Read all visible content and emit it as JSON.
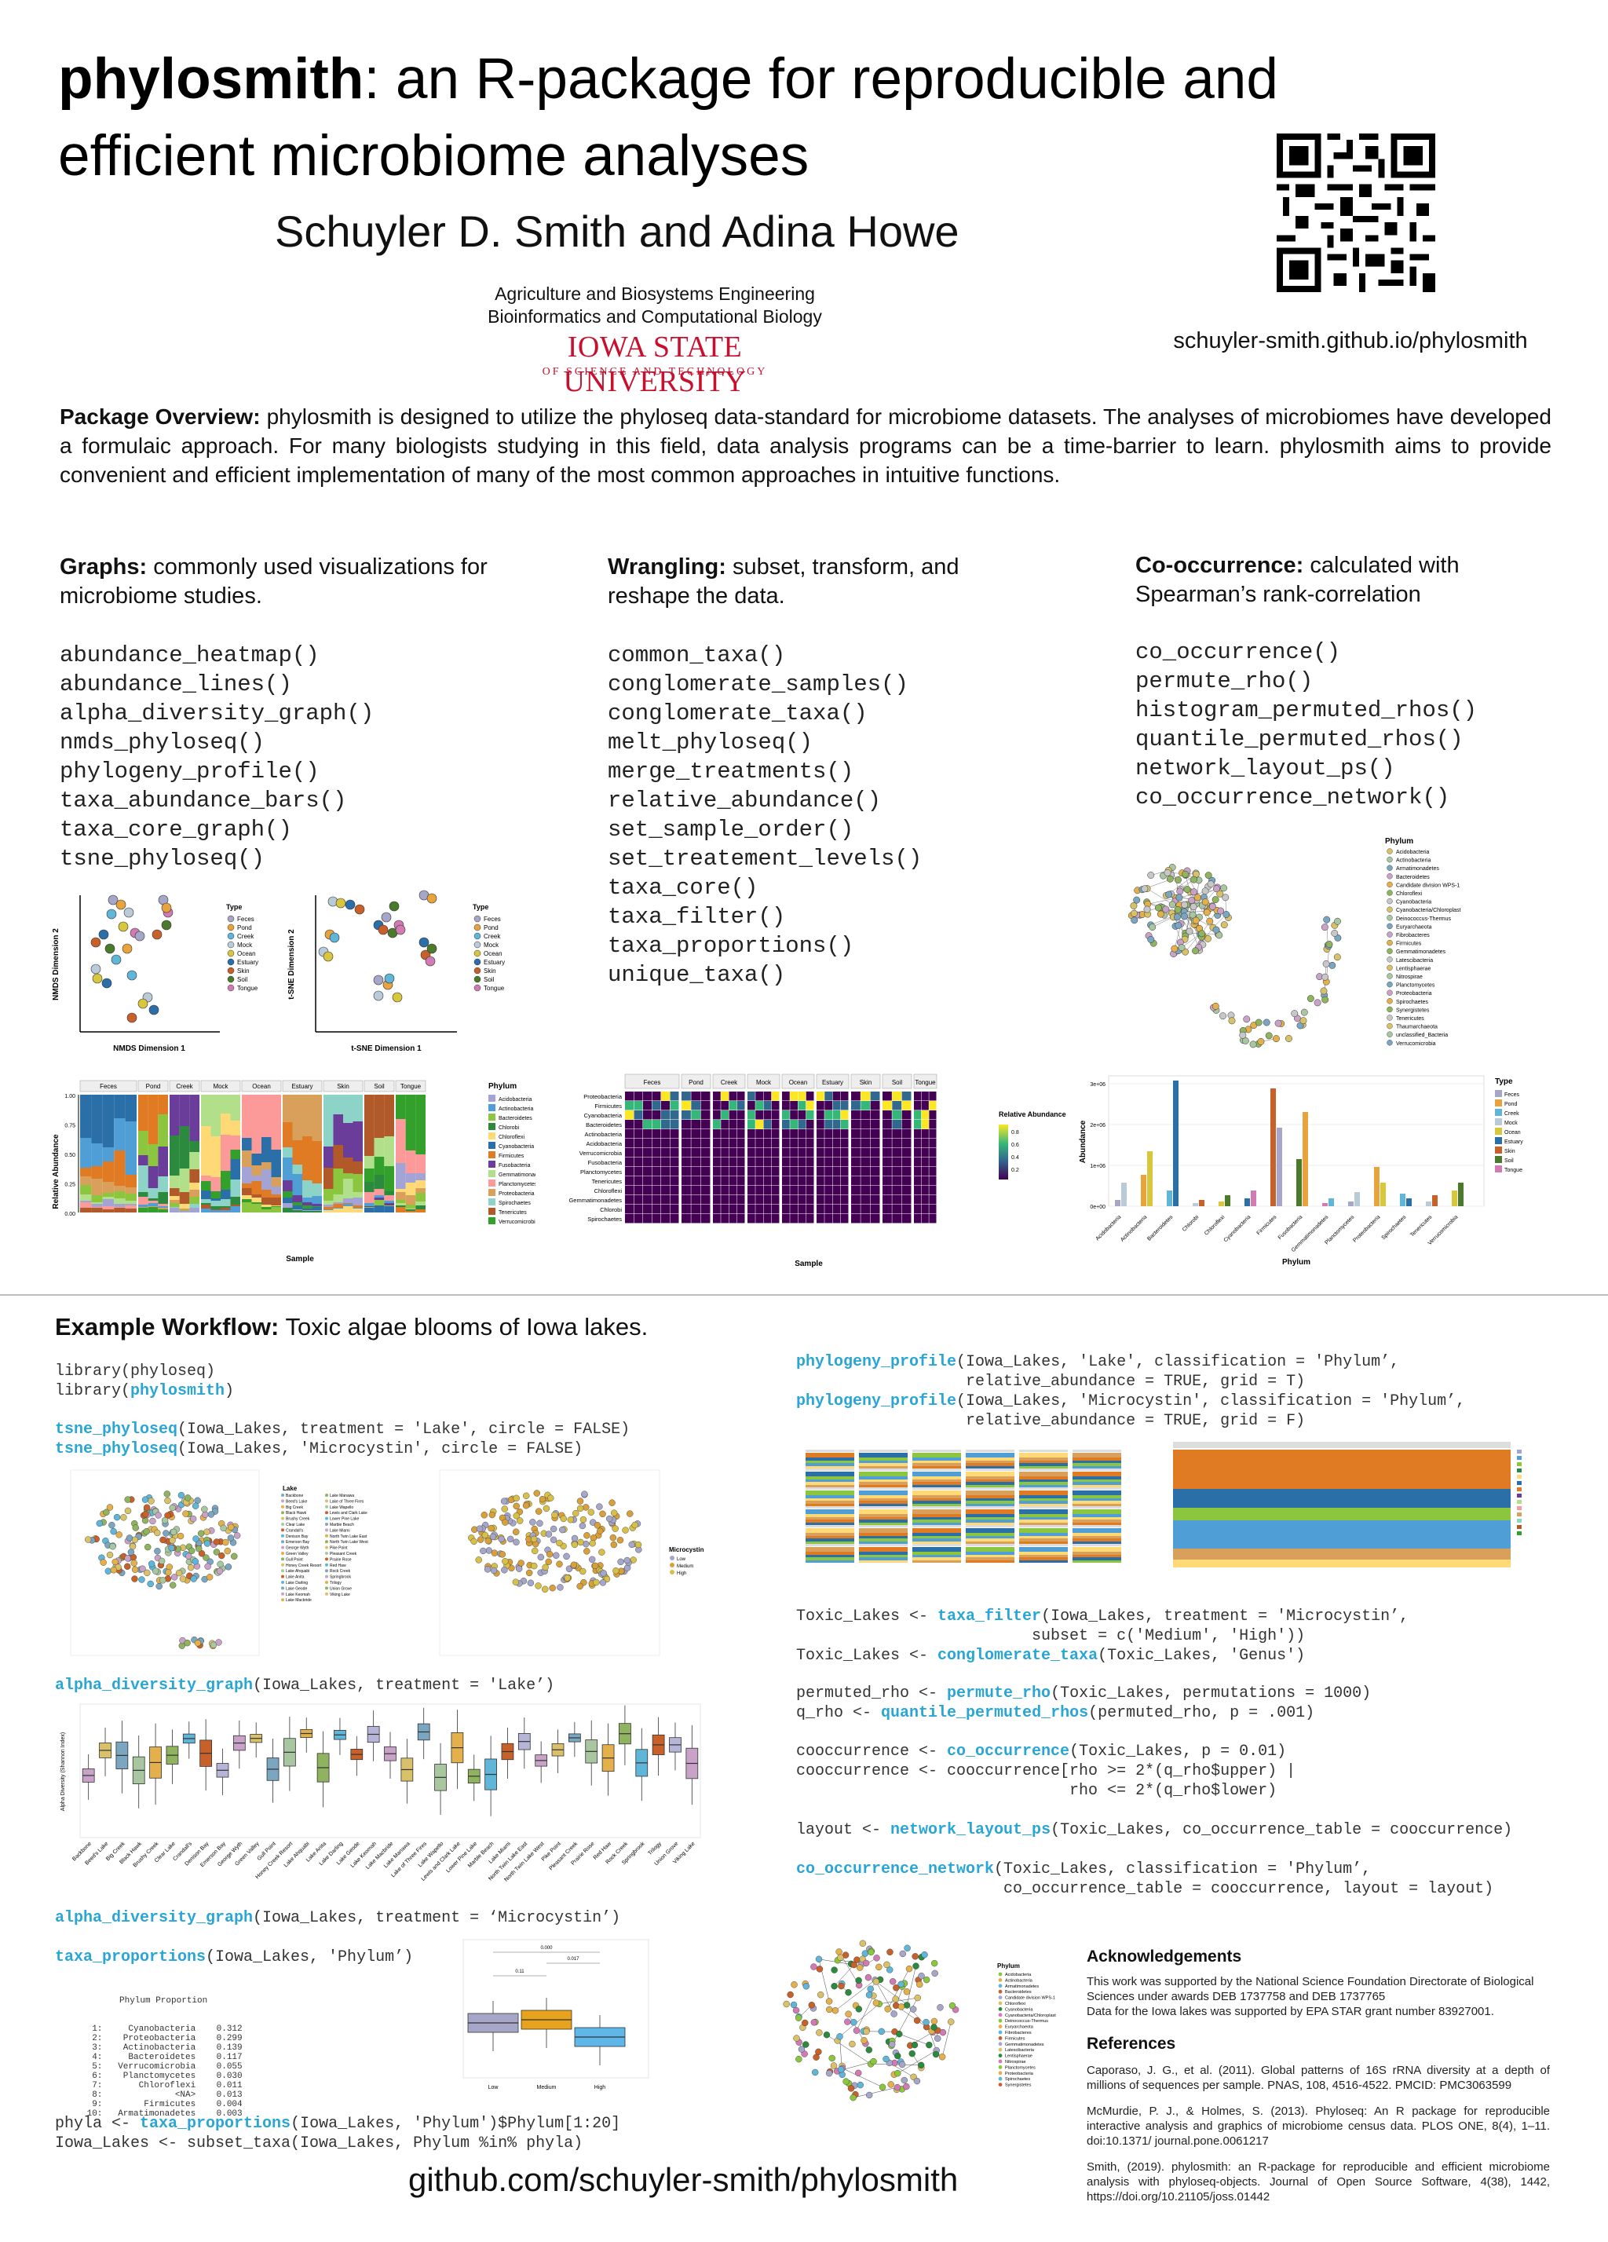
{
  "header": {
    "title_bold": "phylosmith",
    "title_rest": ": an R-package for reproducible and efficient microbiome analyses",
    "authors": "Schuyler D. Smith and Adina Howe",
    "affiliation_1": "Agriculture and Biosystems Engineering",
    "affiliation_2": "Bioinformatics and Computational Biology",
    "university_name": "Iowa State University",
    "university_sub": "OF SCIENCE AND TECHNOLOGY",
    "website": "schuyler-smith.github.io/phylosmith"
  },
  "overview": {
    "label": "Package Overview:",
    "text": "phylosmith is designed to utilize the phyloseq data-standard for microbiome datasets. The analyses of microbiomes have developed a formulaic approach. For many biologists studying in this field, data analysis programs can be a time-barrier to learn. phylosmith aims to provide convenient and efficient implementation of many of the most common approaches in intuitive functions."
  },
  "columns": {
    "graphs": {
      "label": "Graphs:",
      "desc": "commonly used visualizations for microbiome studies.",
      "functions": [
        "abundance_heatmap()",
        "abundance_lines()",
        "alpha_diversity_graph()",
        "nmds_phyloseq()",
        "phylogeny_profile()",
        "taxa_abundance_bars()",
        "taxa_core_graph()",
        "tsne_phyloseq()"
      ]
    },
    "wrangling": {
      "label": "Wrangling:",
      "desc": "subset, transform, and reshape the data.",
      "functions": [
        "common_taxa()",
        "conglomerate_samples()",
        "conglomerate_taxa()",
        "melt_phyloseq()",
        "merge_treatments()",
        "relative_abundance()",
        "set_sample_order()",
        "set_treatement_levels()",
        "taxa_core()",
        "taxa_filter()",
        "taxa_proportions()",
        "unique_taxa()"
      ]
    },
    "cooccurrence": {
      "label": "Co-occurrence:",
      "desc": "calculated with Spearman’s rank-correlation",
      "functions": [
        "co_occurrence()",
        "permute_rho()",
        "histogram_permuted_rhos()",
        "quantile_permuted_rhos()",
        "network_layout_ps()",
        "co_occurrence_network()"
      ]
    }
  },
  "figures": {
    "nmds_xlabel": "NMDS Dimension 1",
    "nmds_ylabel": "NMDS Dimension 2",
    "tsne_xlabel": "t-SNE Dimension 1",
    "tsne_ylabel": "t-SNE Dimension 2",
    "type_legend_title": "Type",
    "types": [
      "Feces",
      "Pond",
      "Creek",
      "Mock",
      "Ocean",
      "Estuary",
      "Skin",
      "Soil",
      "Tongue"
    ],
    "type_colors": [
      "#a6a6c8",
      "#e8a33c",
      "#5fb6d8",
      "#b9cbd8",
      "#d8c63c",
      "#2b6fa8",
      "#c8602a",
      "#4a7a2a",
      "#d27ab3"
    ],
    "bars_ylabel": "Relative Abundance",
    "bars_xlabel": "Sample",
    "phylum_legend_title": "Phylum",
    "phyla": [
      "Acidobacteria",
      "Actinobacteria",
      "Bacteroidetes",
      "Chlorobi",
      "Chloroflexi",
      "Cyanobacteria",
      "Firmicutes",
      "Fusobacteria",
      "Gemmatimonadetes",
      "Planctomycetes",
      "Proteobacteria",
      "Spirochaetes",
      "Tenericutes",
      "Verrucomicrobia"
    ],
    "phylum_colors": [
      "#a3a3d6",
      "#4f9ed6",
      "#8cc63f",
      "#2b8a3e",
      "#fed976",
      "#2b6fa8",
      "#e07b24",
      "#6a3d9a",
      "#b2df8a",
      "#fb9a99",
      "#d9a05b",
      "#8dd3c7",
      "#b15928",
      "#33a02c"
    ],
    "heatmap_xlabel": "Sample",
    "heatmap_legend_title": "Relative Abundance",
    "heatmap_legend_ticks": [
      "0.8",
      "0.6",
      "0.4",
      "0.2"
    ],
    "heatmap_phyla": [
      "Proteobacteria",
      "Firmicutes",
      "Cyanobacteria",
      "Bacteroidetes",
      "Actinobacteria",
      "Acidobacteria",
      "Verrucomicrobia",
      "Fusobacteria",
      "Planctomycetes",
      "Tenericutes",
      "Chloroflexi",
      "Gemmatimonadetes",
      "Chlorobi",
      "Spirochaetes"
    ],
    "abund_ylabel": "Abundance",
    "abund_xlabel": "Phylum",
    "abund_yticks": [
      "3e+06",
      "2e+06",
      "1e+06",
      "0e+00"
    ],
    "network_legend_title": "Phylum",
    "network_phyla": [
      "Acidobacteria",
      "Actinobacteria",
      "Armatimonadetes",
      "Bacteroidetes",
      "Candidate division WPS-1",
      "Chloroflexi",
      "Cyanobacteria",
      "Cyanobacteria/Chloroplast",
      "Deinococcus-Thermus",
      "Euryarchaeota",
      "Fibrobacteres",
      "Firmicutes",
      "Gemmatimonadetes",
      "Latescibacteria",
      "Lentisphaerae",
      "Nitrospirae",
      "Planctomycetes",
      "Proteobacteria",
      "Spirochaetes",
      "Synergistetes",
      "Tenericutes",
      "Thaumarchaeota",
      "unclassified_Bacteria",
      "Verrucomicrobia"
    ]
  },
  "workflow": {
    "label": "Example Workflow:",
    "desc": "Toxic algae blooms of Iowa lakes.",
    "code_lib_1": "library(phyloseq)",
    "code_lib_2_pre": "library(",
    "code_lib_2_fn": "phylosmith",
    "code_lib_2_post": ")",
    "tsne_fn": "tsne_phyloseq",
    "tsne_args_1": "(Iowa_Lakes, treatment = 'Lake', circle = FALSE)",
    "tsne_args_2": "(Iowa_Lakes, 'Microcystin', circle = FALSE)",
    "alpha_fn": "alpha_diversity_graph",
    "alpha_args_1": "(Iowa_Lakes, treatment = 'Lake’)",
    "alpha_args_2": "(Iowa_Lakes, treatment = ‘Microcystin’)",
    "props_fn": "taxa_proportions",
    "props_args": "(Iowa_Lakes, 'Phylum’)",
    "phyla_pre": "phyla <- ",
    "phyla_args": "(Iowa_Lakes, 'Phylum')$Phylum[1:20]",
    "subset_line": "Iowa_Lakes <- subset_taxa(Iowa_Lakes, Phylum %in% phyla)",
    "profile_fn": "phylogeny_profile",
    "profile_args_1a": "(Iowa_Lakes, 'Lake', classification = 'Phylum’,",
    "profile_args_1b": "                  relative_abundance = TRUE, grid = T)",
    "profile_args_2a": "(Iowa_Lakes, 'Microcystin', classification = 'Phylum’,",
    "profile_args_2b": "                  relative_abundance = TRUE, grid = F)",
    "filter_pre": "Toxic_Lakes <- ",
    "filter_fn": "taxa_filter",
    "filter_args_a": "(Iowa_Lakes, treatment = 'Microcystin’,",
    "filter_args_b": "                         subset = c('Medium', 'High'))",
    "cong_pre": "Toxic_Lakes <- ",
    "cong_fn": "conglomerate_taxa",
    "cong_args": "(Toxic_Lakes, 'Genus')",
    "permute_pre": "permuted_rho <- ",
    "permute_fn": "permute_rho",
    "permute_args": "(Toxic_Lakes, permutations = 1000)",
    "quant_pre": "q_rho <- ",
    "quant_fn": "quantile_permuted_rhos",
    "quant_args": "(permuted_rho, p = .001)",
    "cooc_pre": "cooccurrence <- ",
    "cooc_fn": "co_occurrence",
    "cooc_args": "(Toxic_Lakes, p = 0.01)",
    "cooc_line2": "cooccurrence <- cooccurrence[rho >= 2*(q_rho$upper) |",
    "cooc_line3": "                             rho <= 2*(q_rho$lower)",
    "layout_pre": "layout <- ",
    "layout_fn": "network_layout_ps",
    "layout_args": "(Toxic_Lakes, co_occurrence_table = cooccurrence)",
    "net_fn": "co_occurrence_network",
    "net_args_a": "(Toxic_Lakes, classification = 'Phylum’,",
    "net_args_b": "                      co_occurrence_table = cooccurrence, layout = layout)",
    "lake_legend_title": "Lake",
    "microcystin_legend_title": "Microcystin",
    "microcystin_levels": [
      "Low",
      "Medium",
      "High"
    ],
    "alpha_ylabel": "Alpha Diversity (Shannon Index)",
    "lakes": [
      "Backbone",
      "Beed's Lake",
      "Big Creek",
      "Black Hawk",
      "Brushy Creek",
      "Clear Lake",
      "Crandall's",
      "Denison Bay",
      "Emerson Bay",
      "George Wyth",
      "Green Valley",
      "Gull Point",
      "Honey Creek Resort",
      "Lake Ahquabi",
      "Lake Anita",
      "Lake Darling",
      "Lake Geode",
      "Lake Keomah",
      "Lake Macbride",
      "Lake Manawa",
      "Lake of Three Fires",
      "Lake Wapello",
      "Lewis and Clark Lake",
      "Lower Pine Lake",
      "Marble Beach",
      "Lake Miami",
      "North Twin Lake East",
      "North Twin Lake West",
      "Pike Point",
      "Pleasant Creek",
      "Prairie Rose",
      "Red Haw",
      "Rock Creek",
      "Springbrook",
      "Trilogy",
      "Union Grove",
      "Viking Lake"
    ],
    "props_header": "Phylum Proportion",
    "props_rows": [
      {
        "n": "1:",
        "phylum": "Cyanobacteria",
        "p": "0.312"
      },
      {
        "n": "2:",
        "phylum": "Proteobacteria",
        "p": "0.299"
      },
      {
        "n": "3:",
        "phylum": "Actinobacteria",
        "p": "0.139"
      },
      {
        "n": "4:",
        "phylum": "Bacteroidetes",
        "p": "0.117"
      },
      {
        "n": "5:",
        "phylum": "Verrucomicrobia",
        "p": "0.055"
      },
      {
        "n": "6:",
        "phylum": "Planctomycetes",
        "p": "0.030"
      },
      {
        "n": "7:",
        "phylum": "Chloroflexi",
        "p": "0.011"
      },
      {
        "n": "8:",
        "phylum": "<NA>",
        "p": "0.013"
      },
      {
        "n": "9:",
        "phylum": "Firmicutes",
        "p": "0.004"
      },
      {
        "n": "10:",
        "phylum": "Armatimonadetes",
        "p": "0.003"
      }
    ],
    "box_values": [
      "0.000",
      "0.11",
      "0.017"
    ],
    "box_categories": [
      "Low",
      "Medium",
      "High"
    ],
    "box_colors": [
      "#a6a6c8",
      "#e8a31c",
      "#5fb6e8"
    ]
  },
  "acknowledgements": {
    "title": "Acknowledgements",
    "text_1": "This work was supported by the National Science Foundation Directorate of Biological Sciences under awards DEB 1737758 and DEB 1737765",
    "text_2": "Data for the Iowa lakes was supported by EPA STAR grant number 83927001."
  },
  "references": {
    "title": "References",
    "items": [
      "Caporaso, J. G., et al. (2011). Global patterns of 16S rRNA diversity at a depth of millions of sequences per sample. PNAS, 108, 4516-4522. PMCID: PMC3063599",
      "McMurdie, P. J., & Holmes, S. (2013). Phyloseq: An R package for reproducible interactive analysis and graphics of microbiome census data. PLOS ONE, 8(4), 1–11. doi:10.1371/ journal.pone.0061217",
      "Smith, (2019). phylosmith: an R-package for reproducible and efficient microbiome analysis with phyloseq-objects. Journal of Open Source Software, 4(38), 1442, https://doi.org/10.21105/joss.01442"
    ]
  },
  "footer": {
    "github": "github.com/schuyler-smith/phylosmith"
  }
}
